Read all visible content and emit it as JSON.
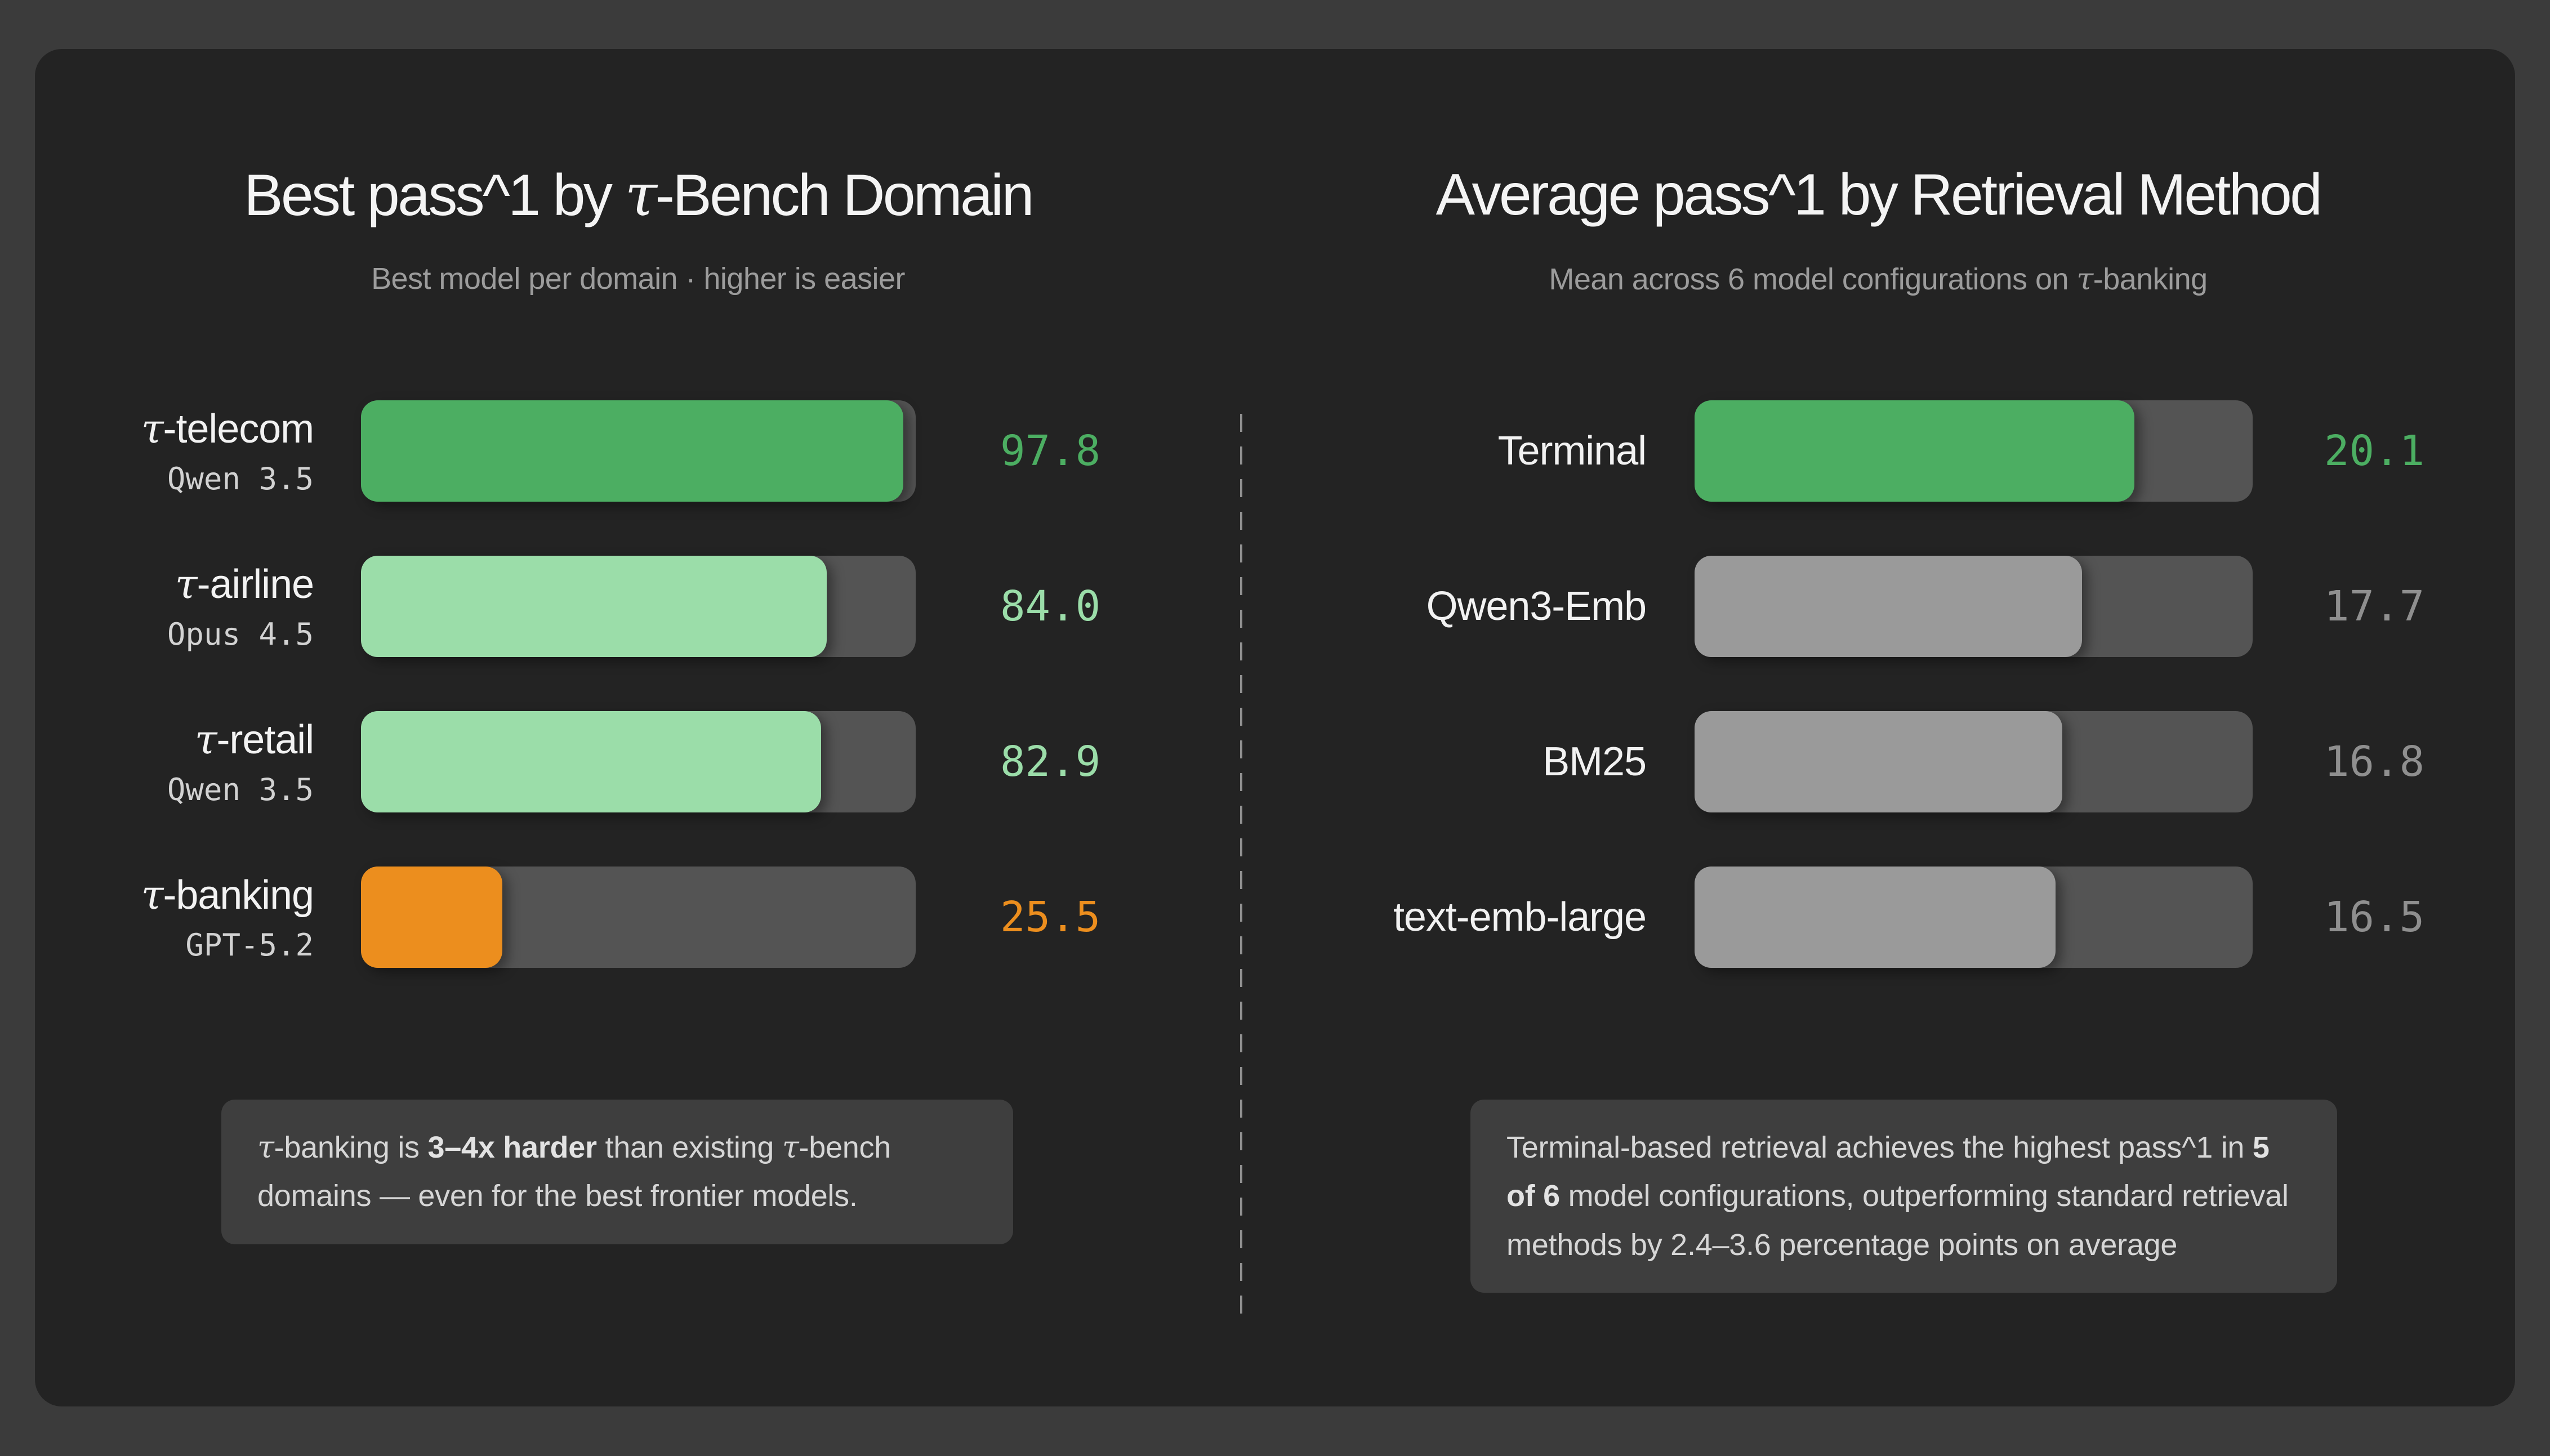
{
  "colors": {
    "page_bg": "#3b3b3b",
    "card_bg": "#232323",
    "track": "#545454",
    "note_bg": "#3e3e3e",
    "green": "#4cae62",
    "mint": "#9bdda9",
    "orange": "#ec8e1e",
    "gray_bar": "#9a9a9a",
    "gray_value": "#8f8f8f"
  },
  "chart_data": [
    {
      "type": "bar",
      "orientation": "horizontal",
      "panel": "left",
      "title": "Best pass^1 by τ-Bench Domain",
      "subtitle": "Best model per domain · higher is easier",
      "xlim": [
        0,
        100
      ],
      "grid": false,
      "legend": false,
      "categories": [
        "τ-telecom",
        "τ-airline",
        "τ-retail",
        "τ-banking"
      ],
      "series": [
        {
          "name": "Best pass^1",
          "values": [
            97.8,
            84.0,
            82.9,
            25.5
          ]
        }
      ],
      "rows": [
        {
          "label": "τ-telecom",
          "sublabel": "Qwen 3.5",
          "value": 97.8,
          "value_label": "97.8",
          "bar_color": "#4cae62",
          "value_color": "#4cae62"
        },
        {
          "label": "τ-airline",
          "sublabel": "Opus 4.5",
          "value": 84.0,
          "value_label": "84.0",
          "bar_color": "#9bdda9",
          "value_color": "#9bdda9"
        },
        {
          "label": "τ-retail",
          "sublabel": "Qwen 3.5",
          "value": 82.9,
          "value_label": "82.9",
          "bar_color": "#9bdda9",
          "value_color": "#9bdda9"
        },
        {
          "label": "τ-banking",
          "sublabel": "GPT-5.2",
          "value": 25.5,
          "value_label": "25.5",
          "bar_color": "#ec8e1e",
          "value_color": "#ec8e1e"
        }
      ],
      "note_segments": [
        {
          "text": "τ-banking is ",
          "bold": false
        },
        {
          "text": "3–4x harder",
          "bold": true
        },
        {
          "text": " than existing τ-bench domains — even for the best frontier models.",
          "bold": false
        }
      ]
    },
    {
      "type": "bar",
      "orientation": "horizontal",
      "panel": "right",
      "title": "Average pass^1 by Retrieval Method",
      "subtitle": "Mean across 6 model configurations on τ-banking",
      "xlim": [
        0,
        25.5
      ],
      "grid": false,
      "legend": false,
      "categories": [
        "Terminal",
        "Qwen3-Emb",
        "BM25",
        "text-emb-large"
      ],
      "series": [
        {
          "name": "Average pass^1",
          "values": [
            20.1,
            17.7,
            16.8,
            16.5
          ]
        }
      ],
      "rows": [
        {
          "label": "Terminal",
          "sublabel": "",
          "value": 20.1,
          "value_label": "20.1",
          "bar_color": "#4cae62",
          "value_color": "#4cae62"
        },
        {
          "label": "Qwen3-Emb",
          "sublabel": "",
          "value": 17.7,
          "value_label": "17.7",
          "bar_color": "#9a9a9a",
          "value_color": "#8f8f8f"
        },
        {
          "label": "BM25",
          "sublabel": "",
          "value": 16.8,
          "value_label": "16.8",
          "bar_color": "#9a9a9a",
          "value_color": "#8f8f8f"
        },
        {
          "label": "text-emb-large",
          "sublabel": "",
          "value": 16.5,
          "value_label": "16.5",
          "bar_color": "#9a9a9a",
          "value_color": "#8f8f8f"
        }
      ],
      "note_segments": [
        {
          "text": "Terminal-based retrieval achieves the highest pass^1 in ",
          "bold": false
        },
        {
          "text": "5 of 6",
          "bold": true
        },
        {
          "text": " model configurations, outperforming standard retrieval methods by 2.4–3.6 percentage points on average",
          "bold": false
        }
      ]
    }
  ]
}
